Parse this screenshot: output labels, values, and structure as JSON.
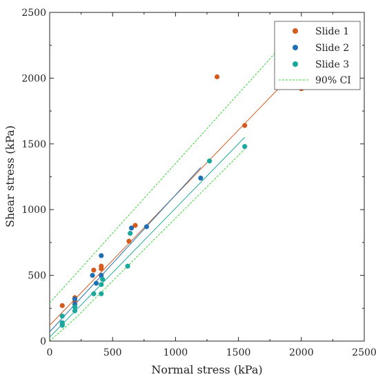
{
  "chart_data": {
    "type": "scatter",
    "xlabel": "Normal stress (kPa)",
    "ylabel": "Shear stress (kPa)",
    "xlim": [
      0,
      2500
    ],
    "ylim": [
      0,
      2500
    ],
    "xticks": [
      0,
      500,
      1000,
      1500,
      2000,
      2500
    ],
    "yticks": [
      0,
      500,
      1000,
      1500,
      2000,
      2500
    ],
    "grid": false,
    "legend_position": "top-right",
    "series": [
      {
        "name": "Slide 1",
        "color": "#d55a1e",
        "points": [
          [
            100,
            270
          ],
          [
            200,
            330
          ],
          [
            200,
            300
          ],
          [
            350,
            540
          ],
          [
            410,
            550
          ],
          [
            410,
            570
          ],
          [
            630,
            760
          ],
          [
            680,
            880
          ],
          [
            1330,
            2010
          ],
          [
            1550,
            1640
          ],
          [
            2000,
            1920
          ]
        ],
        "fit": [
          [
            0,
            120
          ],
          [
            2000,
            2100
          ]
        ]
      },
      {
        "name": "Slide 2",
        "color": "#1f6fb2",
        "points": [
          [
            100,
            130
          ],
          [
            200,
            320
          ],
          [
            200,
            280
          ],
          [
            340,
            500
          ],
          [
            370,
            440
          ],
          [
            410,
            500
          ],
          [
            410,
            650
          ],
          [
            650,
            860
          ],
          [
            770,
            870
          ],
          [
            1200,
            1240
          ]
        ],
        "fit": [
          [
            0,
            70
          ],
          [
            1200,
            1320
          ]
        ]
      },
      {
        "name": "Slide 3",
        "color": "#1aa89c",
        "points": [
          [
            100,
            190
          ],
          [
            100,
            140
          ],
          [
            100,
            120
          ],
          [
            200,
            260
          ],
          [
            200,
            230
          ],
          [
            350,
            360
          ],
          [
            410,
            360
          ],
          [
            410,
            430
          ],
          [
            420,
            470
          ],
          [
            620,
            570
          ],
          [
            640,
            820
          ],
          [
            1270,
            1370
          ],
          [
            1550,
            1480
          ]
        ],
        "fit": [
          [
            0,
            30
          ],
          [
            1550,
            1550
          ]
        ]
      }
    ],
    "ci": {
      "name": "90% CI",
      "color": "#33d633",
      "upper": [
        [
          0,
          290
        ],
        [
          1800,
          2200
        ],
        [
          2000,
          2400
        ]
      ],
      "lower": [
        [
          0,
          -40
        ],
        [
          200,
          170
        ],
        [
          1550,
          1460
        ]
      ]
    }
  }
}
